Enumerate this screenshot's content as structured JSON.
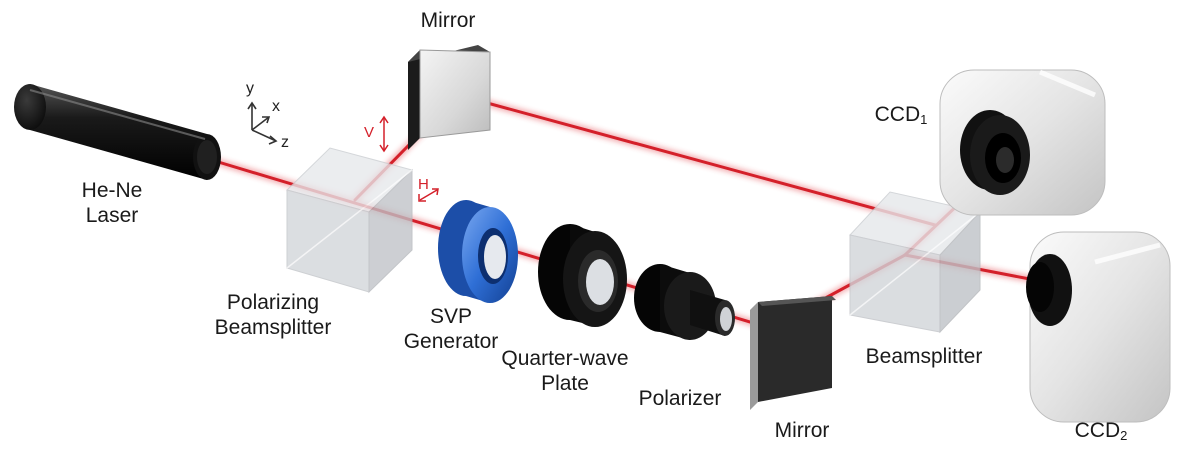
{
  "colors": {
    "beam": "#d4202a",
    "polarization": "#d4202a",
    "svp_generator": "#2f6fd6",
    "optics_black": "#0e0e0e",
    "cube": "#d3d6da",
    "ccd_body": "#e7e7e7"
  },
  "labels": {
    "laser_line1": "He-Ne",
    "laser_line2": "Laser",
    "mirror_top": "Mirror",
    "pbs_line1": "Polarizing",
    "pbs_line2": "Beamsplitter",
    "svp_line1": "SVP",
    "svp_line2": "Generator",
    "qwp_line1": "Quarter-wave",
    "qwp_line2": "Plate",
    "polarizer": "Polarizer",
    "mirror_bottom": "Mirror",
    "beamsplitter": "Beamsplitter",
    "ccd1_base": "CCD",
    "ccd1_sub": "1",
    "ccd2_base": "CCD",
    "ccd2_sub": "2"
  },
  "axes": {
    "y": "y",
    "x": "x",
    "z": "z"
  },
  "polarization_labels": {
    "vertical": "V",
    "horizontal": "H"
  }
}
